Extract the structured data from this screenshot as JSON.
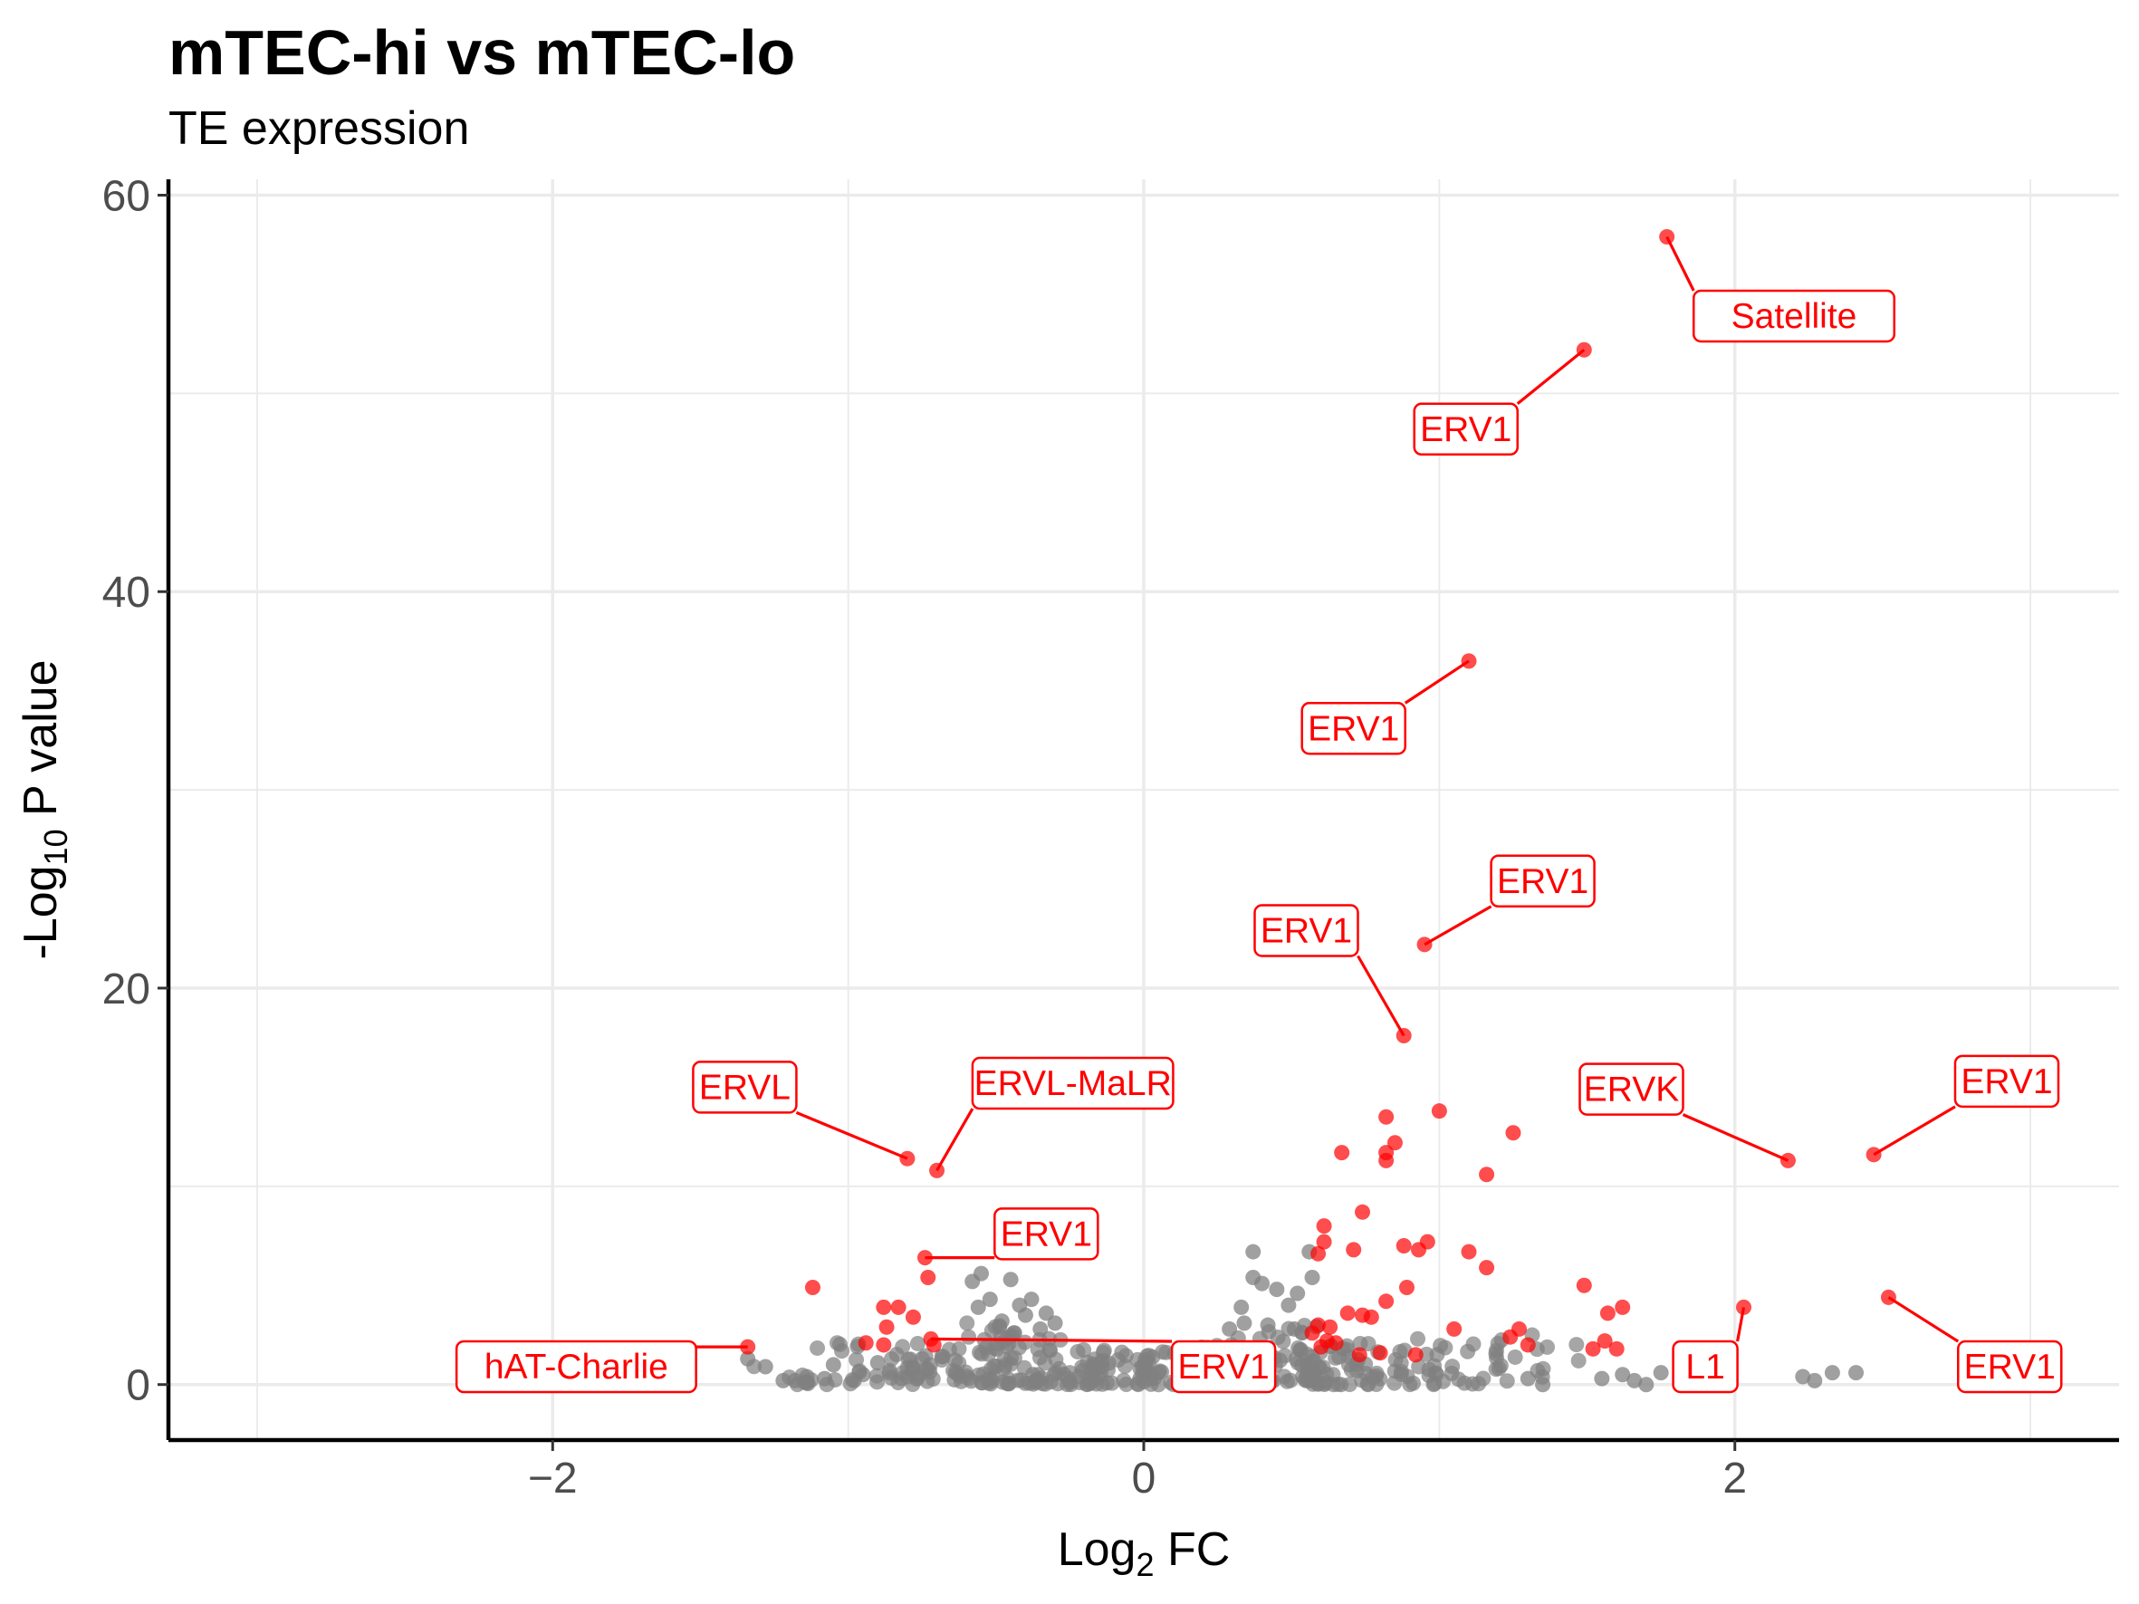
{
  "chart_data": {
    "type": "scatter",
    "title": "mTEC-hi vs mTEC-lo",
    "subtitle": "TE expression",
    "xlabel": {
      "base": "Log",
      "sub": "2",
      "rest": " FC"
    },
    "ylabel": {
      "base": "-Log",
      "sub": "10",
      "rest": " P value"
    },
    "xlim": [
      -3.3,
      3.3
    ],
    "ylim": [
      -2.8,
      60.8
    ],
    "xticks": [
      -2,
      0,
      2
    ],
    "yticks": [
      0,
      20,
      40,
      60
    ],
    "grid": true,
    "legend": "none",
    "colors": {
      "significant": "#ff0000",
      "not_significant": "#808080"
    },
    "labeled_points": [
      {
        "x": 1.77,
        "y": 57.9,
        "label": "Satellite",
        "lx": 2.2,
        "ly": 53.9
      },
      {
        "x": 1.49,
        "y": 52.2,
        "label": "ERV1",
        "lx": 1.09,
        "ly": 48.2
      },
      {
        "x": 1.1,
        "y": 36.5,
        "label": "ERV1",
        "lx": 0.71,
        "ly": 33.1
      },
      {
        "x": 0.95,
        "y": 22.2,
        "label": "ERV1",
        "lx": 1.35,
        "ly": 25.4
      },
      {
        "x": 0.88,
        "y": 17.6,
        "label": "ERV1",
        "lx": 0.55,
        "ly": 22.9
      },
      {
        "x": -0.8,
        "y": 11.4,
        "label": "ERVL",
        "lx": -1.35,
        "ly": 15.0
      },
      {
        "x": -0.7,
        "y": 10.8,
        "label": "ERVL-MaLR",
        "lx": -0.24,
        "ly": 15.2
      },
      {
        "x": 2.18,
        "y": 11.3,
        "label": "ERVK",
        "lx": 1.65,
        "ly": 14.9
      },
      {
        "x": 2.47,
        "y": 11.6,
        "label": "ERV1",
        "lx": 2.92,
        "ly": 15.3
      },
      {
        "x": -0.74,
        "y": 6.4,
        "label": "ERV1",
        "lx": -0.33,
        "ly": 7.6
      },
      {
        "x": -0.72,
        "y": 2.3,
        "label": "ERV1",
        "lx": 0.27,
        "ly": 0.9
      },
      {
        "x": -1.34,
        "y": 1.9,
        "label": "hAT-Charlie",
        "lx": -1.92,
        "ly": 0.9
      },
      {
        "x": 2.03,
        "y": 3.9,
        "label": "L1",
        "lx": 1.9,
        "ly": 0.9
      },
      {
        "x": 2.52,
        "y": 4.4,
        "label": "ERV1",
        "lx": 2.93,
        "ly": 0.9
      }
    ],
    "red_points": [
      [
        -1.12,
        4.9
      ],
      [
        -0.88,
        3.9
      ],
      [
        -0.83,
        3.9
      ],
      [
        -0.78,
        3.4
      ],
      [
        -0.94,
        2.1
      ],
      [
        -0.87,
        2.9
      ],
      [
        -0.73,
        5.4
      ],
      [
        -0.71,
        2.0
      ],
      [
        -0.88,
        2.0
      ],
      [
        0.67,
        11.7
      ],
      [
        0.82,
        13.5
      ],
      [
        0.82,
        11.3
      ],
      [
        0.85,
        12.2
      ],
      [
        0.82,
        11.7
      ],
      [
        1.0,
        13.8
      ],
      [
        1.25,
        12.7
      ],
      [
        1.16,
        10.6
      ],
      [
        0.61,
        8.0
      ],
      [
        0.61,
        7.2
      ],
      [
        0.59,
        6.6
      ],
      [
        0.71,
        6.8
      ],
      [
        0.74,
        8.7
      ],
      [
        0.88,
        7.0
      ],
      [
        0.96,
        7.2
      ],
      [
        0.93,
        6.8
      ],
      [
        1.1,
        6.7
      ],
      [
        1.16,
        5.9
      ],
      [
        0.89,
        4.9
      ],
      [
        0.82,
        4.2
      ],
      [
        0.69,
        3.6
      ],
      [
        0.74,
        3.5
      ],
      [
        0.77,
        3.4
      ],
      [
        0.59,
        3.0
      ],
      [
        0.63,
        2.9
      ],
      [
        0.57,
        2.6
      ],
      [
        0.62,
        2.2
      ],
      [
        0.65,
        2.1
      ],
      [
        0.6,
        1.9
      ],
      [
        0.73,
        1.5
      ],
      [
        0.8,
        1.6
      ],
      [
        0.92,
        1.5
      ],
      [
        1.05,
        2.8
      ],
      [
        1.24,
        2.4
      ],
      [
        1.27,
        2.8
      ],
      [
        1.3,
        2.0
      ],
      [
        1.49,
        5.0
      ],
      [
        1.57,
        3.6
      ],
      [
        1.62,
        3.9
      ],
      [
        1.52,
        1.8
      ],
      [
        1.56,
        2.2
      ],
      [
        1.6,
        1.8
      ]
    ],
    "gray_clusters": [
      {
        "xmin": -1.45,
        "xmax": 1.6,
        "ymin": 0.0,
        "ymax": 1.5,
        "n": 420
      }
    ],
    "gray_points": [
      [
        -1.34,
        1.3
      ],
      [
        -1.28,
        0.9
      ],
      [
        -1.22,
        0.2
      ],
      [
        -1.18,
        0.2
      ],
      [
        -1.14,
        0.4
      ],
      [
        -1.08,
        0.3
      ],
      [
        -1.05,
        1.0
      ],
      [
        -0.98,
        0.2
      ],
      [
        -0.95,
        0.5
      ],
      [
        -0.9,
        1.1
      ],
      [
        -0.86,
        0.7
      ],
      [
        -0.82,
        0.3
      ],
      [
        -0.78,
        0.8
      ],
      [
        -0.75,
        1.3
      ],
      [
        -0.58,
        5.2
      ],
      [
        -0.55,
        5.6
      ],
      [
        -0.45,
        5.3
      ],
      [
        -0.52,
        4.3
      ],
      [
        -0.56,
        3.9
      ],
      [
        -0.42,
        4.0
      ],
      [
        -0.38,
        4.3
      ],
      [
        -0.48,
        3.2
      ],
      [
        -0.4,
        3.5
      ],
      [
        -0.35,
        2.8
      ],
      [
        -0.3,
        3.1
      ],
      [
        -0.44,
        2.6
      ],
      [
        -0.33,
        3.6
      ],
      [
        0.37,
        6.7
      ],
      [
        0.56,
        6.7
      ],
      [
        0.37,
        5.4
      ],
      [
        0.4,
        5.1
      ],
      [
        0.45,
        4.8
      ],
      [
        0.52,
        4.6
      ],
      [
        0.57,
        5.4
      ],
      [
        0.49,
        4.0
      ],
      [
        0.33,
        3.9
      ],
      [
        0.29,
        2.8
      ],
      [
        0.34,
        3.1
      ],
      [
        0.42,
        3.0
      ],
      [
        0.51,
        2.8
      ],
      [
        1.3,
        0.3
      ],
      [
        1.35,
        0.0
      ],
      [
        1.55,
        0.3
      ],
      [
        1.62,
        0.5
      ],
      [
        1.7,
        0.0
      ],
      [
        1.75,
        0.6
      ],
      [
        1.66,
        0.2
      ],
      [
        2.23,
        0.4
      ],
      [
        2.27,
        0.2
      ],
      [
        2.33,
        0.6
      ],
      [
        2.41,
        0.6
      ]
    ]
  }
}
